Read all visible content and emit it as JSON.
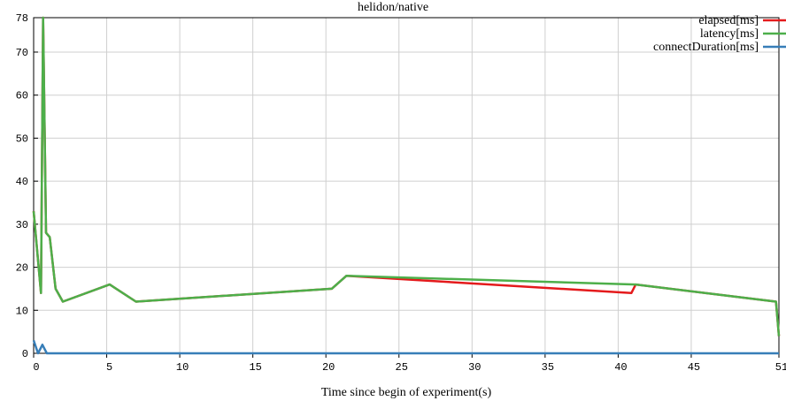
{
  "chart_data": {
    "type": "line",
    "title": "helidon/native",
    "xlabel": "Time since begin of experiment(s)",
    "ylabel": "",
    "xlim": [
      0,
      51
    ],
    "ylim": [
      0,
      78
    ],
    "xticks": [
      0,
      5,
      10,
      15,
      20,
      25,
      30,
      35,
      40,
      45,
      51
    ],
    "yticks": [
      0,
      10,
      20,
      30,
      40,
      50,
      60,
      70,
      78
    ],
    "grid": true,
    "legend_position": "top-right",
    "series": [
      {
        "name": "elapsed[ms]",
        "color": "#e41a1c",
        "points": [
          [
            0,
            33
          ],
          [
            0.5,
            14
          ],
          [
            0.65,
            80
          ],
          [
            0.85,
            28
          ],
          [
            1.1,
            27
          ],
          [
            1.5,
            15
          ],
          [
            2,
            12
          ],
          [
            5.2,
            16
          ],
          [
            7,
            12
          ],
          [
            20.4,
            15
          ],
          [
            21.4,
            18
          ],
          [
            40.9,
            14
          ],
          [
            41.2,
            16
          ],
          [
            50.8,
            12
          ],
          [
            51,
            4
          ]
        ]
      },
      {
        "name": "latency[ms]",
        "color": "#4daf4a",
        "points": [
          [
            0,
            33
          ],
          [
            0.5,
            14
          ],
          [
            0.65,
            80
          ],
          [
            0.85,
            28
          ],
          [
            1.1,
            27
          ],
          [
            1.5,
            15
          ],
          [
            2,
            12
          ],
          [
            5.2,
            16
          ],
          [
            7,
            12
          ],
          [
            20.4,
            15
          ],
          [
            21.4,
            18
          ],
          [
            41.2,
            16
          ],
          [
            50.8,
            12
          ],
          [
            51,
            4
          ]
        ]
      },
      {
        "name": "connectDuration[ms]",
        "color": "#377eb8",
        "points": [
          [
            0,
            3
          ],
          [
            0.3,
            0
          ],
          [
            0.6,
            2
          ],
          [
            0.9,
            0
          ],
          [
            51,
            0
          ]
        ]
      }
    ]
  }
}
